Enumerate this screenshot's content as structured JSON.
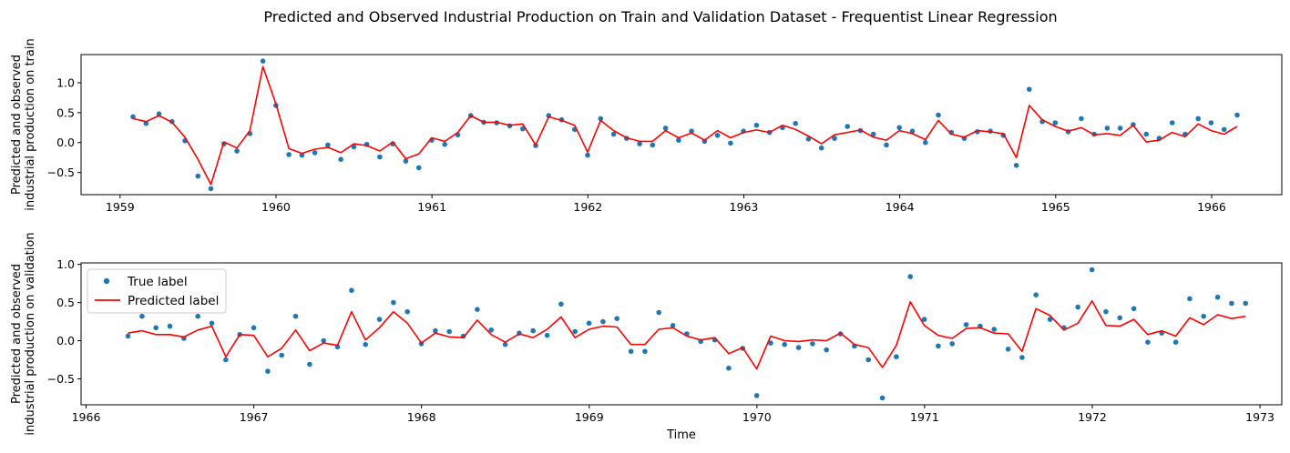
{
  "figure": {
    "title": "Predicted and Observed Industrial Production on Train and Validation Dataset - Frequentist Linear Regression"
  },
  "chart_data": [
    {
      "type": "scatter",
      "ylabel": "Predicted and observed\nindustrial production on train",
      "xlabel": "",
      "xlim": [
        1958.75,
        1966.45
      ],
      "ylim": [
        -0.87,
        1.47
      ],
      "xticks": [
        1959,
        1960,
        1961,
        1962,
        1963,
        1964,
        1965,
        1966
      ],
      "yticks": [
        -0.5,
        0.0,
        0.5,
        1.0
      ],
      "ytick_labels": [
        "−0.5",
        "0.0",
        "0.5",
        "1.0"
      ],
      "grid": false,
      "x_start": 1959.083,
      "x_step": 0.0833,
      "series": [
        {
          "kind": "scatter",
          "color": "#1f77b4",
          "values": [
            0.43,
            0.32,
            0.48,
            0.35,
            0.03,
            -0.56,
            -0.77,
            -0.02,
            -0.14,
            0.15,
            1.36,
            0.62,
            -0.2,
            -0.21,
            -0.17,
            -0.04,
            -0.28,
            -0.07,
            -0.03,
            -0.24,
            -0.02,
            -0.31,
            -0.42,
            0.04,
            -0.03,
            0.13,
            0.45,
            0.34,
            0.33,
            0.28,
            0.23,
            -0.05,
            0.45,
            0.38,
            0.22,
            -0.21,
            0.4,
            0.14,
            0.07,
            -0.02,
            -0.04,
            0.24,
            0.04,
            0.19,
            0.02,
            0.12,
            -0.01,
            0.19,
            0.29,
            0.17,
            0.25,
            0.32,
            0.06,
            -0.09,
            0.07,
            0.27,
            0.2,
            0.14,
            -0.04,
            0.25,
            0.19,
            0.0,
            0.46,
            0.17,
            0.07,
            0.18,
            0.19,
            0.12,
            -0.38,
            0.89,
            0.35,
            0.33,
            0.18,
            0.4,
            0.14,
            0.24,
            0.24,
            0.3,
            0.14,
            0.07,
            0.33,
            0.14,
            0.4,
            0.33,
            0.22,
            0.46
          ]
        },
        {
          "kind": "line",
          "color": "#ff0000",
          "values": [
            0.4,
            0.35,
            0.45,
            0.34,
            0.09,
            -0.28,
            -0.7,
            0.01,
            -0.09,
            0.2,
            1.27,
            0.65,
            -0.1,
            -0.18,
            -0.11,
            -0.08,
            -0.17,
            -0.02,
            -0.05,
            -0.14,
            0.01,
            -0.27,
            -0.19,
            0.08,
            0.02,
            0.17,
            0.45,
            0.34,
            0.34,
            0.29,
            0.31,
            -0.04,
            0.43,
            0.37,
            0.29,
            -0.16,
            0.37,
            0.2,
            0.08,
            0.02,
            0.02,
            0.2,
            0.08,
            0.16,
            0.04,
            0.2,
            0.08,
            0.17,
            0.21,
            0.17,
            0.29,
            0.22,
            0.11,
            -0.02,
            0.13,
            0.17,
            0.21,
            0.09,
            0.04,
            0.2,
            0.15,
            0.05,
            0.37,
            0.14,
            0.09,
            0.2,
            0.18,
            0.15,
            -0.25,
            0.62,
            0.38,
            0.27,
            0.19,
            0.25,
            0.13,
            0.15,
            0.12,
            0.29,
            0.01,
            0.04,
            0.17,
            0.1,
            0.31,
            0.2,
            0.14,
            0.27
          ]
        }
      ]
    },
    {
      "type": "scatter",
      "ylabel": "Predicted and observed\nindustrial production on validation",
      "xlabel": "Time",
      "xlim": [
        1965.97,
        1973.13
      ],
      "ylim": [
        -0.84,
        1.02
      ],
      "xticks": [
        1966,
        1967,
        1968,
        1969,
        1970,
        1971,
        1972,
        1973
      ],
      "yticks": [
        -0.5,
        0.0,
        0.5,
        1.0
      ],
      "ytick_labels": [
        "−0.5",
        "0.0",
        "0.5",
        "1.0"
      ],
      "grid": false,
      "legend_position": "upper left",
      "x_start": 1966.25,
      "x_step": 0.0833,
      "series": [
        {
          "kind": "scatter",
          "name": "True label",
          "color": "#1f77b4",
          "values": [
            0.06,
            0.32,
            0.17,
            0.19,
            0.03,
            0.32,
            0.23,
            -0.25,
            0.08,
            0.17,
            -0.4,
            -0.19,
            0.32,
            -0.31,
            0.0,
            -0.08,
            0.66,
            -0.05,
            0.28,
            0.5,
            0.38,
            -0.04,
            0.13,
            0.12,
            0.06,
            0.41,
            0.14,
            -0.05,
            0.1,
            0.13,
            0.07,
            0.48,
            0.12,
            0.23,
            0.25,
            0.29,
            -0.14,
            -0.14,
            0.37,
            0.2,
            0.09,
            -0.01,
            0.01,
            -0.36,
            -0.1,
            -0.72,
            -0.03,
            -0.05,
            -0.09,
            -0.04,
            -0.12,
            0.09,
            -0.07,
            -0.25,
            -0.75,
            -0.21,
            0.84,
            0.28,
            -0.07,
            -0.04,
            0.21,
            0.19,
            0.15,
            -0.11,
            -0.22,
            0.6,
            0.28,
            0.17,
            0.44,
            0.93,
            0.38,
            0.3,
            0.42,
            -0.02,
            0.1,
            -0.02,
            0.55,
            0.32,
            0.57,
            0.49,
            0.49
          ]
        },
        {
          "kind": "line",
          "name": "Predicted label",
          "color": "#ff0000",
          "values": [
            0.1,
            0.13,
            0.08,
            0.08,
            0.05,
            0.14,
            0.19,
            -0.21,
            0.08,
            0.07,
            -0.21,
            -0.1,
            0.14,
            -0.13,
            -0.03,
            -0.06,
            0.38,
            0.01,
            0.17,
            0.38,
            0.23,
            -0.03,
            0.1,
            0.05,
            0.04,
            0.27,
            0.08,
            -0.02,
            0.09,
            0.04,
            0.15,
            0.31,
            0.04,
            0.15,
            0.19,
            0.18,
            -0.05,
            -0.05,
            0.15,
            0.17,
            0.06,
            0.01,
            0.04,
            -0.17,
            -0.09,
            -0.37,
            0.06,
            0.0,
            -0.01,
            0.01,
            0.0,
            0.1,
            -0.05,
            -0.09,
            -0.35,
            -0.06,
            0.51,
            0.2,
            0.07,
            0.03,
            0.16,
            0.17,
            0.1,
            0.09,
            -0.14,
            0.42,
            0.33,
            0.14,
            0.23,
            0.52,
            0.2,
            0.19,
            0.28,
            0.08,
            0.13,
            0.06,
            0.3,
            0.21,
            0.34,
            0.29,
            0.32
          ]
        }
      ]
    }
  ]
}
